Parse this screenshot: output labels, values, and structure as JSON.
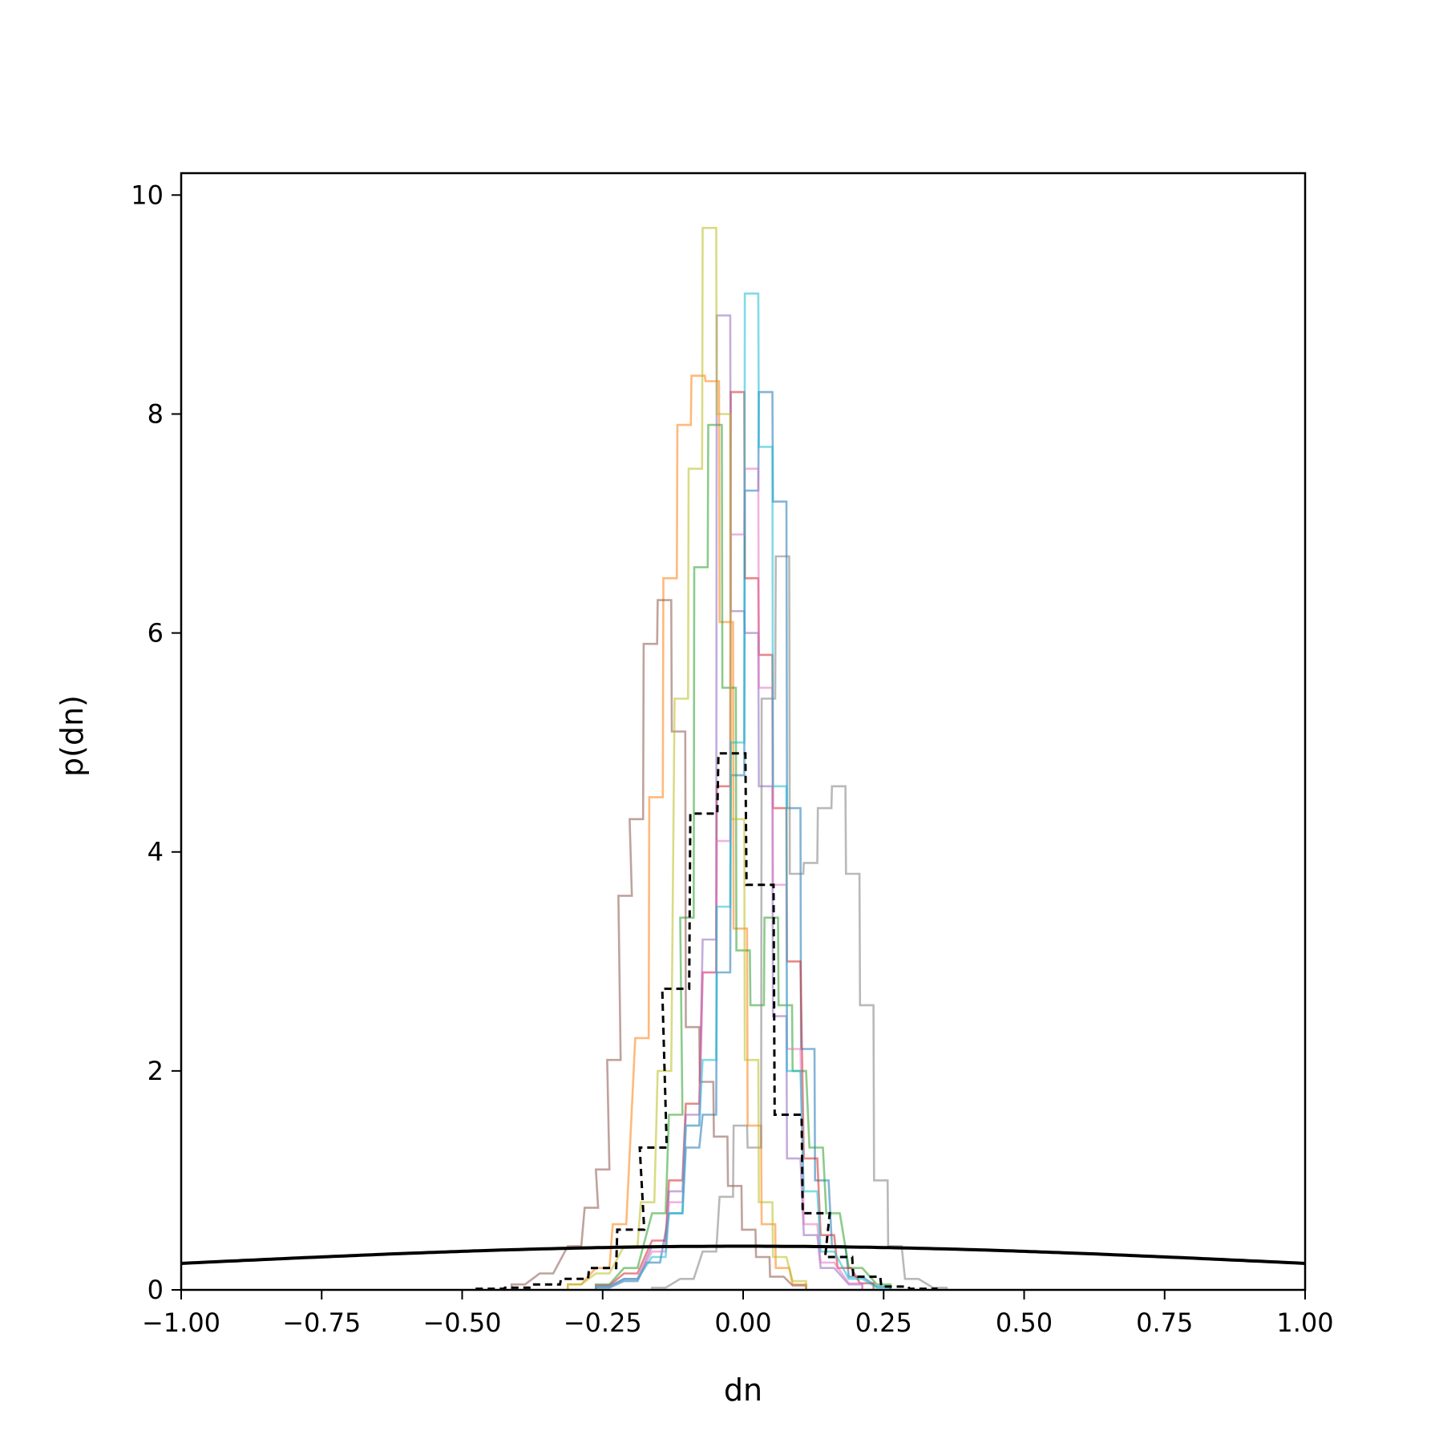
{
  "chart_data": {
    "type": "histogram",
    "xlabel": "dn",
    "ylabel": "p(dn)",
    "xlim": [
      -1.0,
      1.0
    ],
    "ylim": [
      0,
      10.2
    ],
    "xticks": [
      -1.0,
      -0.75,
      -0.5,
      -0.25,
      0.0,
      0.25,
      0.5,
      0.75,
      1.0
    ],
    "xtick_labels": [
      "−1.00",
      "−0.75",
      "−0.50",
      "−0.25",
      "0.00",
      "0.25",
      "0.50",
      "0.75",
      "1.00"
    ],
    "yticks": [
      0,
      2,
      4,
      6,
      8,
      10
    ],
    "ytick_labels": [
      "0",
      "2",
      "4",
      "6",
      "8",
      "10"
    ],
    "grid": false,
    "bin_width": 0.024,
    "series_colors": [
      "#1f77b4",
      "#ff7f0e",
      "#2ca02c",
      "#d62728",
      "#9467bd",
      "#8c564b",
      "#e377c2",
      "#7f7f7f",
      "#bcbd22",
      "#17becf"
    ],
    "series": [
      {
        "values": [
          [
            -0.25,
            0.02
          ],
          [
            -0.2,
            0.08
          ],
          [
            -0.16,
            0.25
          ],
          [
            -0.12,
            0.7
          ],
          [
            -0.09,
            1.3
          ],
          [
            -0.06,
            1.6
          ],
          [
            -0.035,
            2.9
          ],
          [
            -0.01,
            4.7
          ],
          [
            0.015,
            7.3
          ],
          [
            0.04,
            8.2
          ],
          [
            0.065,
            7.2
          ],
          [
            0.09,
            4.4
          ],
          [
            0.115,
            2.2
          ],
          [
            0.14,
            1.0
          ],
          [
            0.17,
            0.4
          ],
          [
            0.2,
            0.12
          ],
          [
            0.25,
            0.03
          ]
        ]
      },
      {
        "values": [
          [
            -0.3,
            0.05
          ],
          [
            -0.25,
            0.2
          ],
          [
            -0.22,
            0.6
          ],
          [
            -0.18,
            2.3
          ],
          [
            -0.155,
            4.5
          ],
          [
            -0.13,
            6.5
          ],
          [
            -0.105,
            7.9
          ],
          [
            -0.08,
            8.35
          ],
          [
            -0.055,
            8.3
          ],
          [
            -0.03,
            6.1
          ],
          [
            -0.005,
            3.3
          ],
          [
            0.02,
            1.5
          ],
          [
            0.045,
            0.6
          ],
          [
            0.07,
            0.2
          ],
          [
            0.1,
            0.05
          ]
        ]
      },
      {
        "values": [
          [
            -0.25,
            0.05
          ],
          [
            -0.2,
            0.2
          ],
          [
            -0.15,
            0.7
          ],
          [
            -0.12,
            1.6
          ],
          [
            -0.1,
            3.4
          ],
          [
            -0.075,
            6.6
          ],
          [
            -0.05,
            7.9
          ],
          [
            -0.025,
            5.5
          ],
          [
            0.0,
            3.1
          ],
          [
            0.025,
            2.6
          ],
          [
            0.05,
            3.4
          ],
          [
            0.075,
            2.6
          ],
          [
            0.1,
            2.0
          ],
          [
            0.13,
            1.3
          ],
          [
            0.16,
            0.7
          ],
          [
            0.2,
            0.2
          ],
          [
            0.25,
            0.05
          ]
        ]
      },
      {
        "values": [
          [
            -0.25,
            0.04
          ],
          [
            -0.2,
            0.15
          ],
          [
            -0.15,
            0.45
          ],
          [
            -0.12,
            1.0
          ],
          [
            -0.09,
            1.7
          ],
          [
            -0.06,
            2.9
          ],
          [
            -0.035,
            4.6
          ],
          [
            -0.01,
            8.2
          ],
          [
            0.015,
            6.5
          ],
          [
            0.04,
            5.8
          ],
          [
            0.065,
            4.4
          ],
          [
            0.09,
            3.0
          ],
          [
            0.12,
            1.2
          ],
          [
            0.15,
            0.5
          ],
          [
            0.18,
            0.2
          ],
          [
            0.22,
            0.06
          ]
        ]
      },
      {
        "values": [
          [
            -0.25,
            0.03
          ],
          [
            -0.2,
            0.1
          ],
          [
            -0.15,
            0.4
          ],
          [
            -0.12,
            0.9
          ],
          [
            -0.09,
            1.6
          ],
          [
            -0.06,
            3.2
          ],
          [
            -0.035,
            8.9
          ],
          [
            -0.01,
            6.2
          ],
          [
            0.015,
            6.0
          ],
          [
            0.04,
            4.6
          ],
          [
            0.065,
            2.5
          ],
          [
            0.09,
            1.2
          ],
          [
            0.12,
            0.5
          ],
          [
            0.15,
            0.2
          ],
          [
            0.2,
            0.05
          ]
        ]
      },
      {
        "values": [
          [
            -0.4,
            0.05
          ],
          [
            -0.35,
            0.15
          ],
          [
            -0.3,
            0.4
          ],
          [
            -0.27,
            0.75
          ],
          [
            -0.25,
            1.1
          ],
          [
            -0.23,
            2.1
          ],
          [
            -0.21,
            3.6
          ],
          [
            -0.19,
            4.3
          ],
          [
            -0.165,
            5.9
          ],
          [
            -0.14,
            6.3
          ],
          [
            -0.115,
            5.1
          ],
          [
            -0.09,
            2.4
          ],
          [
            -0.065,
            1.9
          ],
          [
            -0.04,
            1.4
          ],
          [
            -0.015,
            0.95
          ],
          [
            0.01,
            0.55
          ],
          [
            0.035,
            0.3
          ],
          [
            0.06,
            0.12
          ],
          [
            0.1,
            0.04
          ]
        ]
      },
      {
        "values": [
          [
            -0.25,
            0.03
          ],
          [
            -0.2,
            0.1
          ],
          [
            -0.15,
            0.35
          ],
          [
            -0.12,
            0.8
          ],
          [
            -0.09,
            1.5
          ],
          [
            -0.06,
            2.9
          ],
          [
            -0.035,
            4.1
          ],
          [
            -0.01,
            6.9
          ],
          [
            0.015,
            7.5
          ],
          [
            0.04,
            5.5
          ],
          [
            0.065,
            3.7
          ],
          [
            0.09,
            2.2
          ],
          [
            0.12,
            0.6
          ],
          [
            0.15,
            0.25
          ],
          [
            0.2,
            0.06
          ]
        ]
      },
      {
        "values": [
          [
            -0.15,
            0.02
          ],
          [
            -0.1,
            0.1
          ],
          [
            -0.06,
            0.35
          ],
          [
            -0.03,
            0.85
          ],
          [
            -0.005,
            1.5
          ],
          [
            0.02,
            1.3
          ],
          [
            0.045,
            5.4
          ],
          [
            0.07,
            6.7
          ],
          [
            0.095,
            3.8
          ],
          [
            0.12,
            3.9
          ],
          [
            0.145,
            4.4
          ],
          [
            0.17,
            4.6
          ],
          [
            0.195,
            3.8
          ],
          [
            0.22,
            2.6
          ],
          [
            0.245,
            1.0
          ],
          [
            0.27,
            0.4
          ],
          [
            0.3,
            0.1
          ],
          [
            0.35,
            0.02
          ]
        ]
      },
      {
        "values": [
          [
            -0.3,
            0.05
          ],
          [
            -0.25,
            0.15
          ],
          [
            -0.2,
            0.4
          ],
          [
            -0.17,
            0.8
          ],
          [
            -0.14,
            2.0
          ],
          [
            -0.11,
            5.4
          ],
          [
            -0.085,
            7.5
          ],
          [
            -0.06,
            9.7
          ],
          [
            -0.035,
            8.0
          ],
          [
            -0.01,
            4.3
          ],
          [
            0.015,
            2.1
          ],
          [
            0.04,
            0.8
          ],
          [
            0.065,
            0.3
          ],
          [
            0.1,
            0.08
          ]
        ]
      },
      {
        "values": [
          [
            -0.25,
            0.03
          ],
          [
            -0.2,
            0.1
          ],
          [
            -0.15,
            0.3
          ],
          [
            -0.12,
            0.7
          ],
          [
            -0.09,
            1.5
          ],
          [
            -0.06,
            2.1
          ],
          [
            -0.035,
            3.5
          ],
          [
            -0.01,
            5.0
          ],
          [
            0.015,
            9.1
          ],
          [
            0.04,
            7.7
          ],
          [
            0.065,
            4.6
          ],
          [
            0.09,
            2.0
          ],
          [
            0.12,
            0.9
          ],
          [
            0.15,
            0.35
          ],
          [
            0.2,
            0.1
          ],
          [
            0.25,
            0.02
          ]
        ]
      }
    ],
    "mean_histogram": {
      "style": "dashed",
      "color": "#000000",
      "values": [
        [
          -0.45,
          0.01
        ],
        [
          -0.4,
          0.02
        ],
        [
          -0.35,
          0.05
        ],
        [
          -0.3,
          0.1
        ],
        [
          -0.25,
          0.2
        ],
        [
          -0.2,
          0.55
        ],
        [
          -0.16,
          1.3
        ],
        [
          -0.12,
          2.75
        ],
        [
          -0.07,
          4.35
        ],
        [
          -0.02,
          4.9
        ],
        [
          0.03,
          3.7
        ],
        [
          0.08,
          1.6
        ],
        [
          0.13,
          0.7
        ],
        [
          0.17,
          0.3
        ],
        [
          0.22,
          0.12
        ],
        [
          0.27,
          0.03
        ],
        [
          0.32,
          0.01
        ]
      ]
    },
    "prior_curve": {
      "style": "solid",
      "color": "#000000",
      "distribution": "normal",
      "mean": 0.0,
      "std": 1.0
    }
  }
}
